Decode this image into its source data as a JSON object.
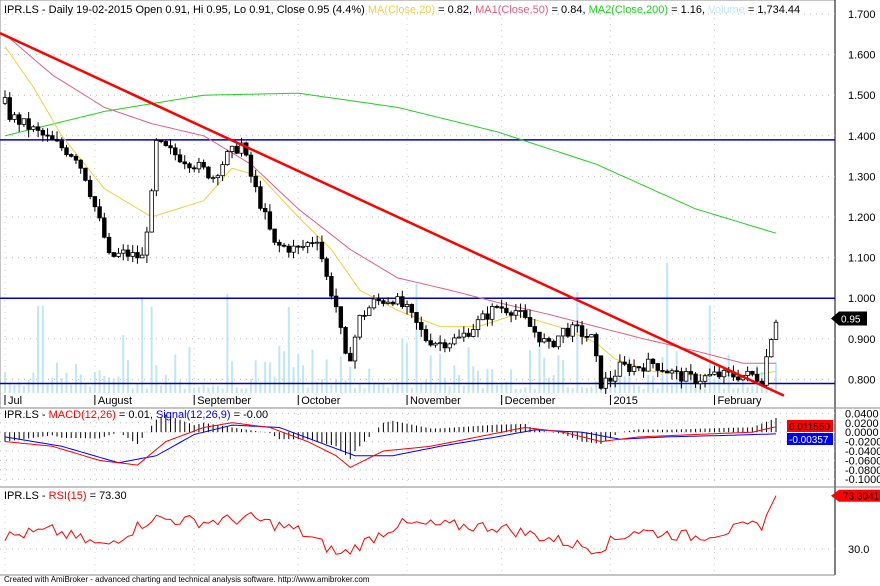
{
  "header": {
    "symbol": "IPR.LS - Daily 19-02-2015 Open 0.91, Hi 0.95, Lo 0.91, Close 0.95 (4.4%)",
    "ma20_label": "MA(Close,20)",
    "ma20_value": " = 0.82, ",
    "ma50_label": "MA1(Close,50)",
    "ma50_value": " = 0.84, ",
    "ma200_label": "MA2(Close,200)",
    "ma200_value": " = 1.16, ",
    "volume_label": "Volume",
    "volume_value": " = 1,734.44"
  },
  "macd_header": {
    "prefix": "IPR.LS - ",
    "macd_label": "MACD(12,26)",
    "macd_value": " = 0.01, ",
    "signal_label": "Signal(12,26,9)",
    "signal_value": " = -0.00"
  },
  "rsi_header": {
    "prefix": "IPR.LS - ",
    "rsi_label": "RSI(15)",
    "rsi_value": " = 73.30"
  },
  "footer": "Created with AmiBroker - advanced charting and technical analysis software. http://www.amibroker.com",
  "colors": {
    "ma20": "#f0d040",
    "ma50": "#e06080",
    "ma200": "#20d020",
    "volume": "#bfe6f5",
    "trend": "#ff0000",
    "hline": "#0000c0",
    "macd": "#ff0000",
    "signal": "#0000ff",
    "rsi": "#ff0000"
  },
  "chart_data": {
    "type": "candlestick",
    "bars": 164,
    "months": [
      {
        "label": "Jul",
        "i": 0
      },
      {
        "label": "August",
        "i": 19
      },
      {
        "label": "September",
        "i": 40
      },
      {
        "label": "October",
        "i": 62
      },
      {
        "label": "November",
        "i": 85
      },
      {
        "label": "December",
        "i": 105
      },
      {
        "label": "2015",
        "i": 128
      },
      {
        "label": "February",
        "i": 150
      }
    ],
    "price_ticks": [
      "1.700",
      "1.600",
      "1.500",
      "1.400",
      "1.300",
      "1.200",
      "1.100",
      "1.000",
      "0.900",
      "0.800"
    ],
    "price_range": [
      0.77,
      1.73
    ],
    "last_price": "0.95",
    "close_keypoints": [
      [
        0,
        1.48
      ],
      [
        1,
        1.45
      ],
      [
        8,
        1.4
      ],
      [
        15,
        1.35
      ],
      [
        17,
        1.3
      ],
      [
        21,
        1.15
      ],
      [
        22,
        1.1
      ],
      [
        25,
        1.11
      ],
      [
        29,
        1.1
      ],
      [
        31,
        1.25
      ],
      [
        32,
        1.38
      ],
      [
        35,
        1.36
      ],
      [
        40,
        1.33
      ],
      [
        44,
        1.3
      ],
      [
        47,
        1.35
      ],
      [
        50,
        1.38
      ],
      [
        52,
        1.3
      ],
      [
        55,
        1.2
      ],
      [
        57,
        1.13
      ],
      [
        62,
        1.12
      ],
      [
        66,
        1.15
      ],
      [
        68,
        1.05
      ],
      [
        70,
        0.98
      ],
      [
        72,
        0.85
      ],
      [
        73,
        0.86
      ],
      [
        75,
        0.95
      ],
      [
        78,
        0.99
      ],
      [
        82,
        1.0
      ],
      [
        85,
        0.97
      ],
      [
        89,
        0.9
      ],
      [
        92,
        0.89
      ],
      [
        96,
        0.9
      ],
      [
        100,
        0.94
      ],
      [
        104,
        0.98
      ],
      [
        108,
        0.97
      ],
      [
        111,
        0.93
      ],
      [
        115,
        0.88
      ],
      [
        118,
        0.92
      ],
      [
        121,
        0.92
      ],
      [
        124,
        0.9
      ],
      [
        126,
        0.79
      ],
      [
        128,
        0.8
      ],
      [
        130,
        0.83
      ],
      [
        133,
        0.83
      ],
      [
        137,
        0.84
      ],
      [
        142,
        0.81
      ],
      [
        146,
        0.8
      ],
      [
        150,
        0.81
      ],
      [
        154,
        0.81
      ],
      [
        158,
        0.81
      ],
      [
        160,
        0.8
      ],
      [
        162,
        0.91
      ],
      [
        163,
        0.95
      ]
    ],
    "ma20": [
      [
        0,
        1.62
      ],
      [
        6,
        1.52
      ],
      [
        12,
        1.4
      ],
      [
        21,
        1.27
      ],
      [
        31,
        1.2
      ],
      [
        42,
        1.24
      ],
      [
        48,
        1.32
      ],
      [
        54,
        1.3
      ],
      [
        62,
        1.2
      ],
      [
        69,
        1.12
      ],
      [
        75,
        1.02
      ],
      [
        83,
        0.97
      ],
      [
        92,
        0.93
      ],
      [
        100,
        0.93
      ],
      [
        108,
        0.96
      ],
      [
        117,
        0.93
      ],
      [
        125,
        0.89
      ],
      [
        129,
        0.85
      ],
      [
        137,
        0.82
      ],
      [
        146,
        0.81
      ],
      [
        158,
        0.81
      ],
      [
        163,
        0.82
      ]
    ],
    "ma50": [
      [
        0,
        1.65
      ],
      [
        10,
        1.55
      ],
      [
        21,
        1.47
      ],
      [
        31,
        1.43
      ],
      [
        42,
        1.4
      ],
      [
        52,
        1.33
      ],
      [
        62,
        1.22
      ],
      [
        73,
        1.12
      ],
      [
        83,
        1.05
      ],
      [
        94,
        1.02
      ],
      [
        104,
        0.99
      ],
      [
        115,
        0.96
      ],
      [
        125,
        0.93
      ],
      [
        135,
        0.9
      ],
      [
        146,
        0.87
      ],
      [
        156,
        0.84
      ],
      [
        163,
        0.84
      ]
    ],
    "ma200": [
      [
        0,
        1.4
      ],
      [
        21,
        1.46
      ],
      [
        42,
        1.5
      ],
      [
        62,
        1.505
      ],
      [
        83,
        1.47
      ],
      [
        104,
        1.41
      ],
      [
        125,
        1.33
      ],
      [
        146,
        1.22
      ],
      [
        163,
        1.16
      ]
    ],
    "trendline": [
      [
        0,
        1.653
      ],
      [
        163,
        0.76
      ]
    ],
    "hlines": [
      1.39,
      1.0,
      0.79
    ],
    "macd": {
      "ticks": [
        "0.0400",
        "0.0200",
        "0.0000",
        "-0.0200",
        "-0.0400",
        "-0.0600",
        "-0.0800",
        "-0.1000"
      ],
      "range": [
        -0.105,
        0.045
      ],
      "last_macd": "0.011550",
      "last_signal": "-0.00357",
      "macd_kp": [
        [
          0,
          -0.02
        ],
        [
          10,
          -0.03
        ],
        [
          20,
          -0.06
        ],
        [
          28,
          -0.07
        ],
        [
          34,
          -0.02
        ],
        [
          42,
          0.01
        ],
        [
          48,
          0.02
        ],
        [
          56,
          0.01
        ],
        [
          64,
          -0.02
        ],
        [
          70,
          -0.05
        ],
        [
          73,
          -0.075
        ],
        [
          80,
          -0.04
        ],
        [
          90,
          -0.03
        ],
        [
          100,
          -0.01
        ],
        [
          110,
          0.01
        ],
        [
          118,
          0.0
        ],
        [
          126,
          -0.02
        ],
        [
          134,
          -0.01
        ],
        [
          146,
          -0.005
        ],
        [
          158,
          0.0
        ],
        [
          163,
          0.0115
        ]
      ],
      "signal_kp": [
        [
          0,
          -0.01
        ],
        [
          12,
          -0.03
        ],
        [
          24,
          -0.065
        ],
        [
          32,
          -0.05
        ],
        [
          40,
          -0.005
        ],
        [
          48,
          0.015
        ],
        [
          58,
          0.01
        ],
        [
          66,
          -0.02
        ],
        [
          74,
          -0.05
        ],
        [
          82,
          -0.05
        ],
        [
          92,
          -0.03
        ],
        [
          104,
          -0.01
        ],
        [
          112,
          0.005
        ],
        [
          122,
          0.0
        ],
        [
          130,
          -0.015
        ],
        [
          140,
          -0.01
        ],
        [
          152,
          -0.007
        ],
        [
          163,
          -0.0036
        ]
      ]
    },
    "rsi": {
      "ticks": [
        "30.0"
      ],
      "range": [
        15,
        80
      ],
      "last": "73.3041",
      "kp": [
        [
          0,
          40
        ],
        [
          10,
          45
        ],
        [
          21,
          32
        ],
        [
          31,
          55
        ],
        [
          42,
          52
        ],
        [
          52,
          55
        ],
        [
          62,
          45
        ],
        [
          71,
          25
        ],
        [
          83,
          50
        ],
        [
          104,
          48
        ],
        [
          125,
          30
        ],
        [
          133,
          45
        ],
        [
          146,
          40
        ],
        [
          160,
          50
        ],
        [
          163,
          73.3
        ]
      ]
    }
  }
}
